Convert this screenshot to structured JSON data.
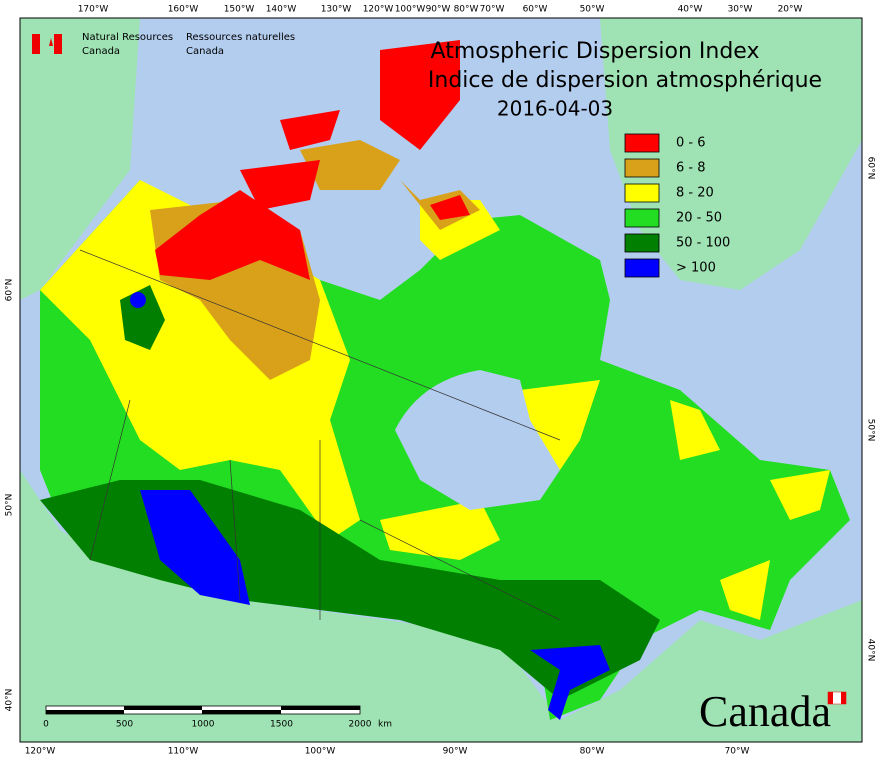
{
  "header": {
    "agency_en": [
      "Natural Resources",
      "Canada"
    ],
    "agency_fr": [
      "Ressources naturelles",
      "Canada"
    ]
  },
  "title": {
    "en": "Atmospheric Dispersion Index",
    "fr": "Indice de dispersion atmosphérique",
    "date": "2016-04-03"
  },
  "legend": [
    {
      "label": "0 - 6",
      "color": "#ff0000"
    },
    {
      "label": "6 - 8",
      "color": "#d9a019"
    },
    {
      "label": "8 - 20",
      "color": "#ffff00"
    },
    {
      "label": "20 - 50",
      "color": "#22dd22"
    },
    {
      "label": "50 - 100",
      "color": "#007f00"
    },
    {
      "label": "> 100",
      "color": "#0000ff"
    }
  ],
  "graticule": {
    "top": [
      "170°W",
      "160°W",
      "150°W",
      "140°W",
      "130°W",
      "120°W",
      "100°W",
      "90°W",
      "80°W",
      "70°W",
      "60°W",
      "50°W",
      "40°W",
      "30°W",
      "20°W"
    ],
    "bottom": [
      "120°W",
      "110°W",
      "100°W",
      "90°W",
      "80°W",
      "70°W"
    ],
    "left": [
      "60°N",
      "50°N",
      "40°N"
    ],
    "right": [
      "60°N",
      "50°N",
      "40°N"
    ]
  },
  "scale_bar": {
    "labels": [
      0,
      500,
      1000,
      1500,
      2000
    ],
    "unit": "km"
  },
  "wordmark": "Canada"
}
